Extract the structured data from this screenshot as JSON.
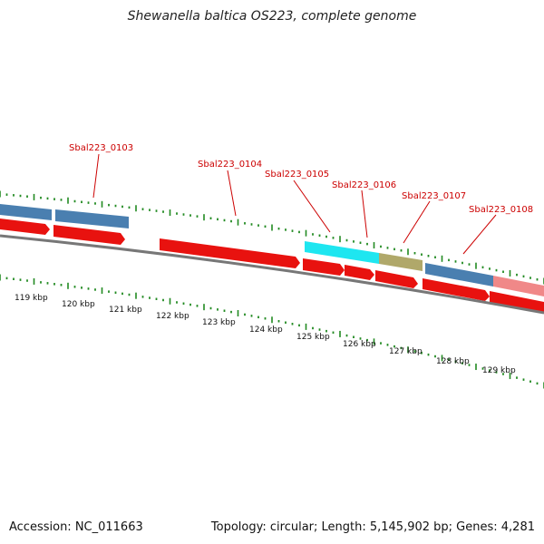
{
  "title": "Shewanella baltica OS223, complete genome",
  "footer": {
    "accession": "Accession: NC_011663",
    "topology": "Topology: circular; Length: 5,145,902 bp; Genes: 4,281"
  },
  "colors": {
    "cds": "#e8120f",
    "gene_blue": "#4a7fb0",
    "gene_cyan": "#1ee6f0",
    "gene_olive": "#b0a86a",
    "gene_pink": "#f08888",
    "backbone": "#777777",
    "ticks": "#228b22",
    "label": "#cc0000"
  },
  "scale_labels": [
    "119 kbp",
    "120 kbp",
    "121 kbp",
    "122 kbp",
    "123 kbp",
    "124 kbp",
    "125 kbp",
    "126 kbp",
    "127 kbp",
    "128 kbp",
    "129 kbp"
  ],
  "gene_labels": [
    "Sbal223_0103",
    "Sbal223_0104",
    "Sbal223_0105",
    "Sbal223_0106",
    "Sbal223_0107",
    "Sbal223_0108"
  ]
}
